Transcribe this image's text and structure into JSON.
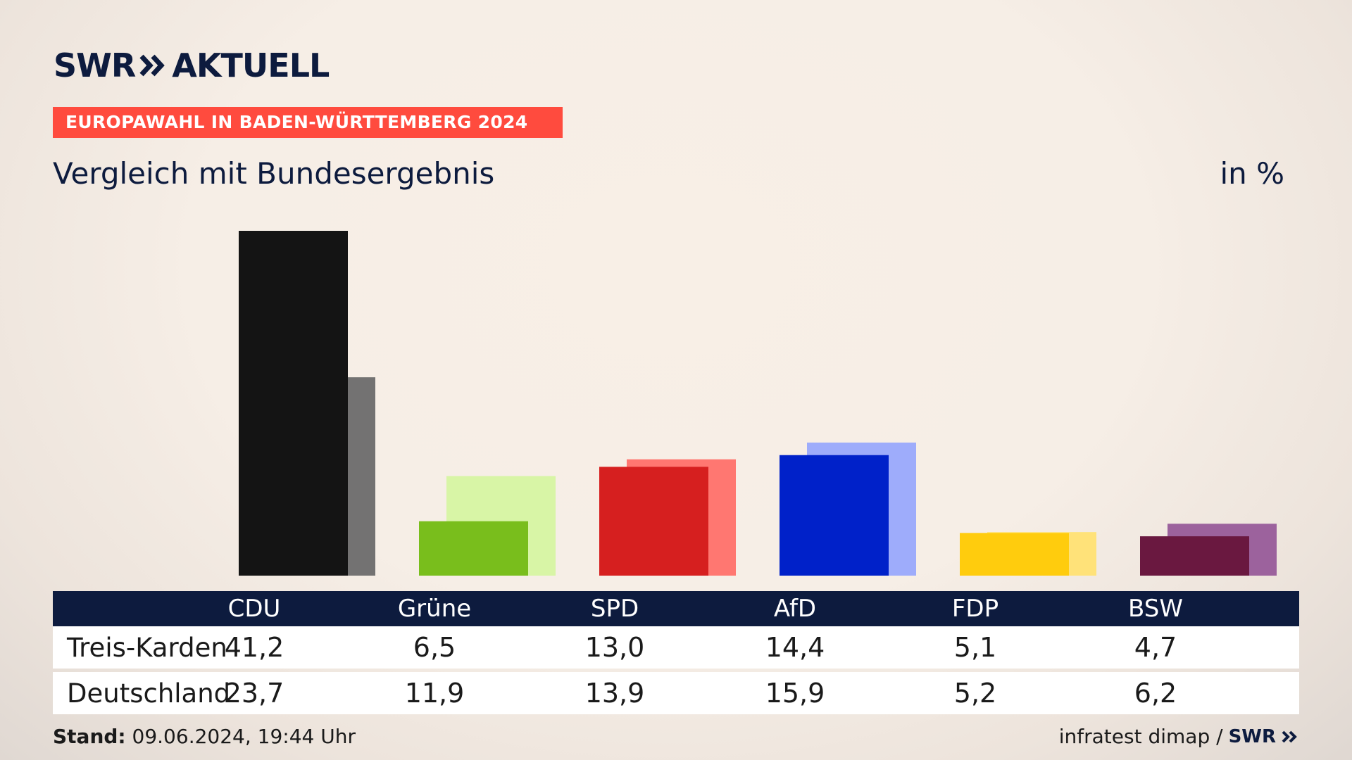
{
  "header": {
    "brand_left": "SWR",
    "brand_right": "AKTUELL",
    "tag": "EUROPAWAHL IN BADEN-WÜRTTEMBERG 2024",
    "subtitle": "Vergleich mit Bundesergebnis",
    "unit": "in %"
  },
  "colors": {
    "navy": "#0d1b3e",
    "tag_red": "#ff4b3e",
    "CDU": [
      "#141414",
      "#737272"
    ],
    "Grüne": [
      "#79be1c",
      "#d8f5a6"
    ],
    "SPD": [
      "#d61f1f",
      "#ff7771"
    ],
    "AfD": [
      "#0021c9",
      "#9eacfb"
    ],
    "FDP": [
      "#ffcc0d",
      "#ffe279"
    ],
    "BSW": [
      "#6a1840",
      "#9c629d"
    ]
  },
  "chart_data": {
    "type": "bar",
    "categories": [
      "CDU",
      "Grüne",
      "SPD",
      "AfD",
      "FDP",
      "BSW"
    ],
    "series": [
      {
        "name": "Treis-Karden",
        "values": [
          41.2,
          6.5,
          13.0,
          14.4,
          5.1,
          4.7
        ]
      },
      {
        "name": "Deutschland",
        "values": [
          23.7,
          11.9,
          13.9,
          15.9,
          5.2,
          6.2
        ]
      }
    ],
    "value_labels": {
      "Treis-Karden": [
        "41,2",
        "6,5",
        "13,0",
        "14,4",
        "5,1",
        "4,7"
      ],
      "Deutschland": [
        "23,7",
        "11,9",
        "13,9",
        "15,9",
        "5,2",
        "6,2"
      ]
    },
    "title": "Vergleich mit Bundesergebnis",
    "ylim": [
      0,
      41.2
    ],
    "grid": false
  },
  "footer": {
    "stand_label": "Stand:",
    "stand_value": "09.06.2024, 19:44 Uhr",
    "source": "infratest dimap /",
    "source_brand": "SWR"
  }
}
